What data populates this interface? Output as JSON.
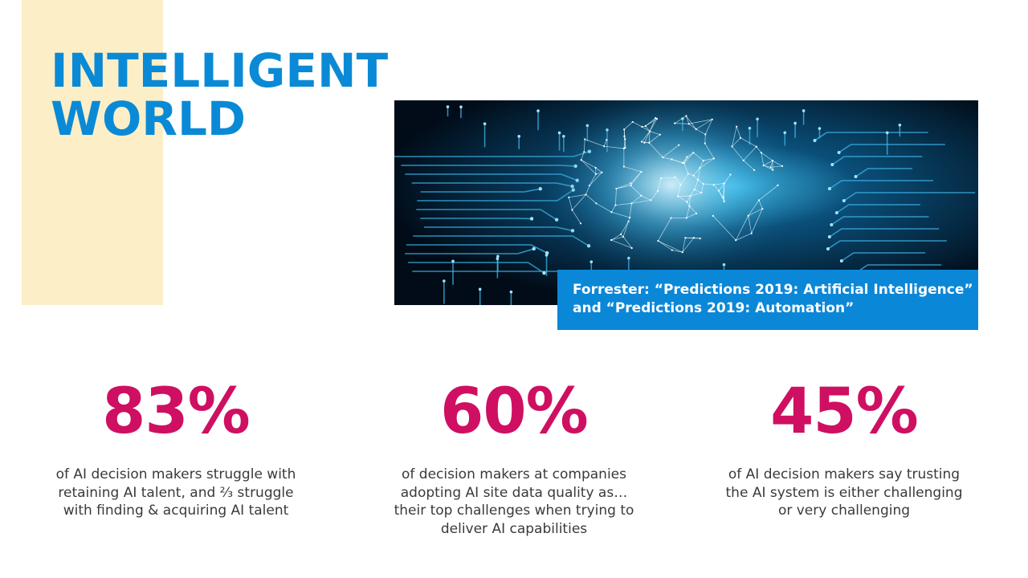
{
  "slide": {
    "title_lines": [
      "INTELLIGENT",
      "WORLD"
    ],
    "caption_lines": [
      "Forrester: “Predictions 2019: Artificial Intelligence”",
      "and “Predictions 2019: Automation”"
    ],
    "stats": [
      {
        "value": "83%",
        "description_lines": [
          "of AI decision makers struggle with",
          "retaining AI talent, and ⅔ struggle",
          "with finding & acquiring AI talent"
        ]
      },
      {
        "value": "60%",
        "description_lines": [
          "of decision makers at companies",
          "adopting AI site data quality as…",
          "their top challenges when trying to",
          "deliver AI capabilities"
        ]
      },
      {
        "value": "45%",
        "description_lines": [
          "of AI decision makers say trusting",
          "the AI system is either challenging",
          "or very challenging"
        ]
      }
    ]
  },
  "colors": {
    "title": "#0a8ad6",
    "accent_bar": "#fcefc7",
    "caption_bg": "#0b87d8",
    "stat_value": "#cf0f61",
    "body_text": "#3a3a3a"
  },
  "image": {
    "subject": "glowing digital brain over circuit board"
  }
}
